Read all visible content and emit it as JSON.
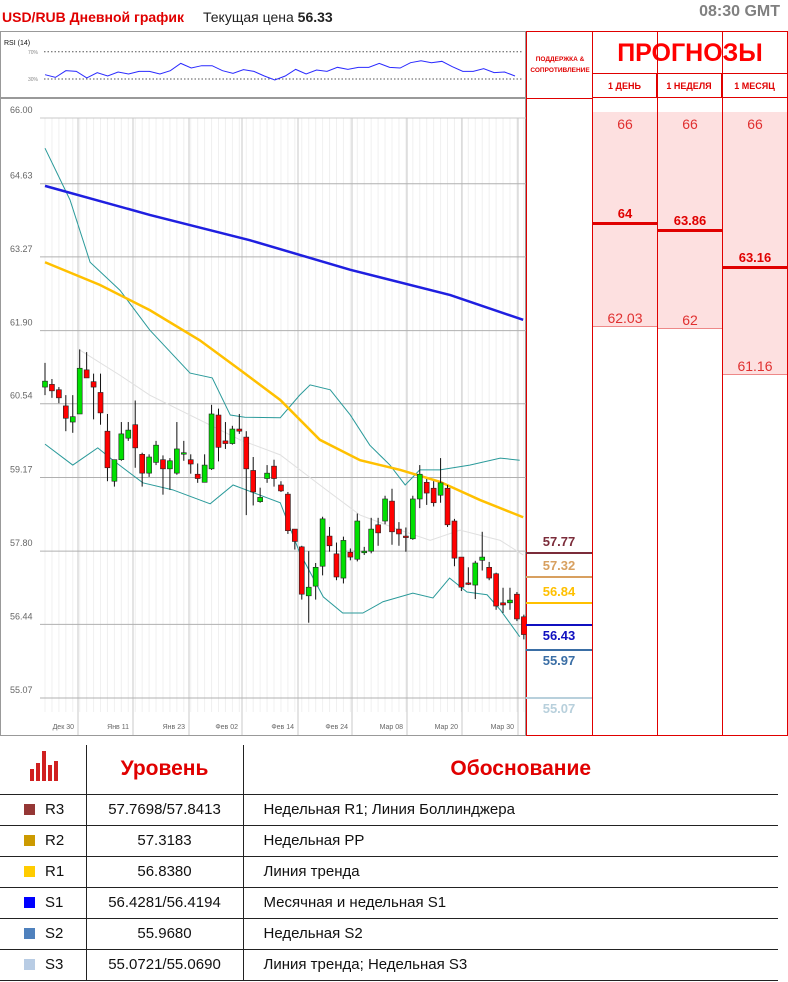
{
  "header": {
    "title": "USD/RUB Дневной график",
    "price_label": "Текущая цена",
    "price": "56.33",
    "time": "08:30 GMT"
  },
  "rsi": {
    "label": "RSI (14)",
    "upper": "70%",
    "lower": "30%",
    "values": [
      36.3,
      32.4,
      42.2,
      41.2,
      31.5,
      39.3,
      34.4,
      40.2,
      37.3,
      41.2,
      41.2,
      37.3,
      42.2,
      52.9,
      46.1,
      49.5,
      49.5,
      42.2,
      38.3,
      43.7,
      41.2,
      34.4,
      28.5,
      34.4,
      44.1,
      37.3,
      43.2,
      41.2,
      47.1,
      44.1,
      47.1,
      47.1,
      52.9,
      47.1,
      46.1,
      53.9,
      56.8,
      53.9,
      55.9,
      48.0,
      41.2,
      41.2,
      45.1,
      39.3,
      40.2,
      34.4
    ]
  },
  "chart_data": {
    "type": "candlestick",
    "title": "USD/RUB Дневной график",
    "ylim": [
      55.07,
      66.0
    ],
    "yticks": [
      "66.00",
      "64.63",
      "63.27",
      "61.90",
      "60.54",
      "59.17",
      "57.80",
      "56.44",
      "55.07"
    ],
    "xticks": [
      "Дек 30",
      "Янв 11",
      "Янв 23",
      "Фев 02",
      "Фев 14",
      "Фев 24",
      "Мар 08",
      "Мар 20",
      "Мар 30"
    ],
    "grid": true,
    "colors": {
      "up": "#00e000",
      "down": "#ff0000",
      "ma_slow": "#1f1fe0",
      "ma_fast": "#ffc000",
      "bollinger": "#2a9a9a",
      "bollinger_mid": "#e0e0e0"
    },
    "ohlc": [
      [
        60.85,
        61.3,
        60.7,
        60.96
      ],
      [
        60.9,
        61.0,
        60.65,
        60.78
      ],
      [
        60.8,
        60.85,
        60.55,
        60.65
      ],
      [
        60.5,
        60.7,
        60.03,
        60.27
      ],
      [
        60.2,
        60.7,
        60.0,
        60.3
      ],
      [
        60.35,
        61.55,
        60.35,
        61.2
      ],
      [
        61.17,
        61.5,
        61.02,
        61.02
      ],
      [
        60.95,
        61.1,
        60.25,
        60.85
      ],
      [
        60.75,
        61.1,
        60.15,
        60.37
      ],
      [
        60.03,
        60.35,
        59.1,
        59.35
      ],
      [
        59.1,
        59.5,
        59.0,
        59.5
      ],
      [
        59.5,
        60.2,
        59.48,
        59.98
      ],
      [
        59.9,
        60.2,
        59.85,
        60.05
      ],
      [
        60.15,
        60.6,
        59.35,
        59.72
      ],
      [
        59.6,
        59.63,
        59.0,
        59.25
      ],
      [
        59.25,
        59.6,
        59.18,
        59.55
      ],
      [
        59.45,
        59.85,
        59.4,
        59.77
      ],
      [
        59.5,
        59.58,
        58.85,
        59.33
      ],
      [
        59.33,
        59.53,
        58.94,
        59.48
      ],
      [
        59.25,
        60.2,
        59.22,
        59.7
      ],
      [
        59.61,
        59.85,
        59.48,
        59.63
      ],
      [
        59.5,
        59.6,
        59.24,
        59.42
      ],
      [
        59.23,
        59.43,
        59.07,
        59.15
      ],
      [
        59.08,
        59.6,
        59.08,
        59.4
      ],
      [
        59.33,
        60.52,
        59.31,
        60.35
      ],
      [
        60.33,
        60.45,
        59.47,
        59.73
      ],
      [
        59.85,
        60.2,
        59.7,
        59.8
      ],
      [
        59.8,
        60.13,
        59.78,
        60.07
      ],
      [
        60.07,
        60.35,
        59.98,
        60.03
      ],
      [
        59.92,
        60.03,
        58.47,
        59.33
      ],
      [
        59.3,
        59.55,
        58.65,
        58.9
      ],
      [
        58.72,
        58.98,
        58.7,
        58.8
      ],
      [
        59.15,
        59.4,
        59.07,
        59.25
      ],
      [
        59.38,
        59.5,
        59.0,
        59.15
      ],
      [
        59.03,
        59.1,
        58.9,
        58.92
      ],
      [
        58.86,
        58.9,
        58.12,
        58.18
      ],
      [
        58.21,
        58.21,
        57.83,
        57.98
      ],
      [
        57.88,
        57.9,
        56.9,
        57.0
      ],
      [
        56.97,
        57.8,
        56.47,
        57.13
      ],
      [
        57.15,
        57.58,
        56.9,
        57.5
      ],
      [
        57.52,
        58.44,
        57.35,
        58.4
      ],
      [
        58.08,
        58.25,
        57.79,
        57.9
      ],
      [
        57.75,
        57.96,
        57.26,
        57.32
      ],
      [
        57.3,
        58.07,
        57.2,
        58.0
      ],
      [
        57.78,
        57.85,
        57.63,
        57.69
      ],
      [
        57.65,
        58.5,
        57.61,
        58.36
      ],
      [
        57.77,
        57.88,
        57.73,
        57.8
      ],
      [
        57.8,
        58.42,
        57.76,
        58.21
      ],
      [
        58.29,
        58.42,
        57.9,
        58.14
      ],
      [
        58.36,
        58.83,
        58.3,
        58.77
      ],
      [
        58.73,
        58.96,
        57.92,
        58.16
      ],
      [
        58.21,
        58.34,
        57.9,
        58.12
      ],
      [
        58.08,
        58.24,
        57.79,
        58.06
      ],
      [
        58.03,
        58.83,
        58.01,
        58.77
      ],
      [
        58.77,
        59.4,
        58.6,
        59.23
      ],
      [
        59.08,
        59.14,
        58.66,
        58.88
      ],
      [
        58.97,
        59.1,
        58.63,
        58.7
      ],
      [
        58.84,
        59.53,
        58.7,
        59.07
      ],
      [
        58.97,
        59.03,
        58.25,
        58.29
      ],
      [
        58.36,
        58.4,
        57.52,
        57.67
      ],
      [
        57.69,
        57.69,
        57.06,
        57.13
      ],
      [
        57.21,
        57.5,
        57.17,
        57.19
      ],
      [
        57.17,
        57.62,
        56.91,
        57.58
      ],
      [
        57.63,
        58.16,
        57.44,
        57.69
      ],
      [
        57.5,
        57.6,
        57.26,
        57.3
      ],
      [
        57.38,
        57.4,
        56.71,
        56.78
      ],
      [
        56.84,
        57.12,
        56.65,
        56.8
      ],
      [
        56.84,
        57.12,
        56.71,
        56.89
      ],
      [
        57.0,
        57.04,
        56.5,
        56.54
      ],
      [
        56.58,
        56.62,
        56.16,
        56.25
      ]
    ],
    "ma_slow": [
      [
        1,
        64.59
      ],
      [
        16.1,
        64.05
      ],
      [
        30.5,
        63.58
      ],
      [
        45,
        63.03
      ],
      [
        59.4,
        62.56
      ],
      [
        69.9,
        62.1
      ]
    ],
    "ma_fast": [
      [
        1,
        63.17
      ],
      [
        8.9,
        62.75
      ],
      [
        16.1,
        62.28
      ],
      [
        23.3,
        61.72
      ],
      [
        29.1,
        61.17
      ],
      [
        34.9,
        60.61
      ],
      [
        40.6,
        59.87
      ],
      [
        46.4,
        59.49
      ],
      [
        52.2,
        59.31
      ],
      [
        57.9,
        59.09
      ],
      [
        63.7,
        58.75
      ],
      [
        69.9,
        58.43
      ]
    ],
    "bb_upper": [
      [
        1,
        65.29
      ],
      [
        4.6,
        64.33
      ],
      [
        7.5,
        63.17
      ],
      [
        11.8,
        62.65
      ],
      [
        16.1,
        61.91
      ],
      [
        21.9,
        61.11
      ],
      [
        25.1,
        61.02
      ],
      [
        27.7,
        60.33
      ],
      [
        29.8,
        60.29
      ],
      [
        34.9,
        60.28
      ],
      [
        37.7,
        60.7
      ],
      [
        39.2,
        60.89
      ],
      [
        42.1,
        60.8
      ],
      [
        45,
        60.33
      ],
      [
        47.8,
        59.77
      ],
      [
        50.7,
        59.4
      ],
      [
        52.9,
        59.03
      ],
      [
        55,
        59.31
      ],
      [
        57.9,
        59.31
      ],
      [
        62.2,
        59.4
      ],
      [
        66.6,
        59.53
      ],
      [
        69.4,
        59.49
      ]
    ],
    "bb_lower": [
      [
        1,
        59.79
      ],
      [
        5,
        59.4
      ],
      [
        8.6,
        59.72
      ],
      [
        10.8,
        59.49
      ],
      [
        15.1,
        59.07
      ],
      [
        19.4,
        58.94
      ],
      [
        24.8,
        58.68
      ],
      [
        28.1,
        59.03
      ],
      [
        34.9,
        58.7
      ],
      [
        37.7,
        57.77
      ],
      [
        41.1,
        56.95
      ],
      [
        43.9,
        56.65
      ],
      [
        46.8,
        56.65
      ],
      [
        49.7,
        56.86
      ],
      [
        54,
        57.02
      ],
      [
        56.9,
        56.93
      ],
      [
        59.3,
        57.3
      ],
      [
        61.8,
        57.04
      ],
      [
        64.7,
        56.99
      ],
      [
        66.6,
        56.71
      ],
      [
        69.4,
        56.21
      ]
    ],
    "bb_mid": [
      [
        6,
        61.54
      ],
      [
        11.8,
        61.07
      ],
      [
        16.1,
        60.7
      ],
      [
        23.3,
        60.24
      ],
      [
        29.1,
        59.87
      ],
      [
        34.9,
        59.59
      ],
      [
        40.6,
        59.03
      ],
      [
        46.4,
        58.47
      ],
      [
        52.2,
        58.19
      ],
      [
        56.5,
        58.0
      ],
      [
        60.8,
        58.19
      ],
      [
        66.6,
        58.0
      ],
      [
        69.9,
        57.73
      ]
    ]
  },
  "support_resistance": {
    "header": "ПОДДЕРЖКА & СОПРОТИВЛЕНИЕ",
    "levels": [
      {
        "value": "57.77",
        "price": 57.77,
        "color": "#7b2c3a",
        "side": "resistance"
      },
      {
        "value": "57.32",
        "price": 57.32,
        "color": "#d8a060",
        "side": "resistance"
      },
      {
        "value": "56.84",
        "price": 56.84,
        "color": "#ffc000",
        "side": "resistance"
      },
      {
        "value": "56.43",
        "price": 56.43,
        "color": "#1010c0",
        "side": "support"
      },
      {
        "value": "55.97",
        "price": 55.97,
        "color": "#3a6ea5",
        "side": "support"
      },
      {
        "value": "55.07",
        "price": 55.07,
        "color": "#b8d0dc",
        "side": "support"
      }
    ]
  },
  "forecasts": {
    "title": "ПРОГНОЗЫ",
    "columns": [
      {
        "label": "1 ДЕНЬ",
        "high": "66",
        "target": "64",
        "low": "62.03"
      },
      {
        "label": "1 НЕДЕЛЯ",
        "high": "66",
        "target": "63.86",
        "low": "62"
      },
      {
        "label": "1 МЕСЯЦ",
        "high": "66",
        "target": "63.16",
        "low": "61.16"
      }
    ]
  },
  "table": {
    "headers": {
      "level": "Уровень",
      "reason": "Обоснование"
    },
    "rows": [
      {
        "name": "R3",
        "color": "#953735",
        "level": "57.7698/57.8413",
        "reason": "Недельная R1; Линия Боллинджера"
      },
      {
        "name": "R2",
        "color": "#cc9a00",
        "level": "57.3183",
        "reason": "Недельная PP"
      },
      {
        "name": "R1",
        "color": "#ffcc00",
        "level": "56.8380",
        "reason": "Линия тренда"
      },
      {
        "name": "S1",
        "color": "#0000ff",
        "level": "56.4281/56.4194",
        "reason": "Месячная и недельная S1"
      },
      {
        "name": "S2",
        "color": "#4f81bd",
        "level": "55.9680",
        "reason": "Недельная S2"
      },
      {
        "name": "S3",
        "color": "#b8cce4",
        "level": "55.0721/55.0690",
        "reason": "Линия тренда; Недельная S3"
      }
    ]
  }
}
